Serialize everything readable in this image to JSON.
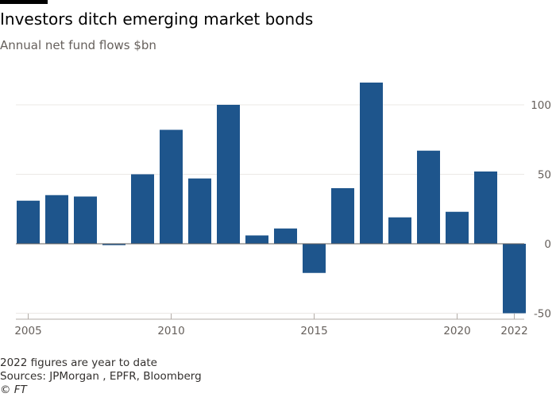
{
  "chart_data": {
    "type": "bar",
    "title": "Investors ditch emerging market bonds",
    "subtitle": "Annual net fund flows $bn",
    "xlabel": "",
    "ylabel": "",
    "categories": [
      "2005",
      "2006",
      "2007",
      "2008",
      "2009",
      "2010",
      "2011",
      "2012",
      "2013",
      "2014",
      "2015",
      "2016",
      "2017",
      "2018",
      "2019",
      "2020",
      "2021",
      "2022"
    ],
    "values": [
      31,
      35,
      34,
      -1,
      50,
      82,
      47,
      100,
      6,
      11,
      -21,
      40,
      116,
      19,
      67,
      23,
      52,
      -50
    ],
    "ylim": [
      -50,
      120
    ],
    "yticks": [
      "100",
      "50",
      "0",
      "-50"
    ],
    "xticks": [
      "2005",
      "2010",
      "2015",
      "2020",
      "2022"
    ],
    "grid": true,
    "bar_color": "#1e558c",
    "grid_color": "#ebe8e6",
    "zero_line_color": "#66605c"
  },
  "footnotes": {
    "note": "2022 figures are year to date",
    "sources": "Sources: JPMorgan , EPFR, Bloomberg",
    "credit": "© FT"
  }
}
